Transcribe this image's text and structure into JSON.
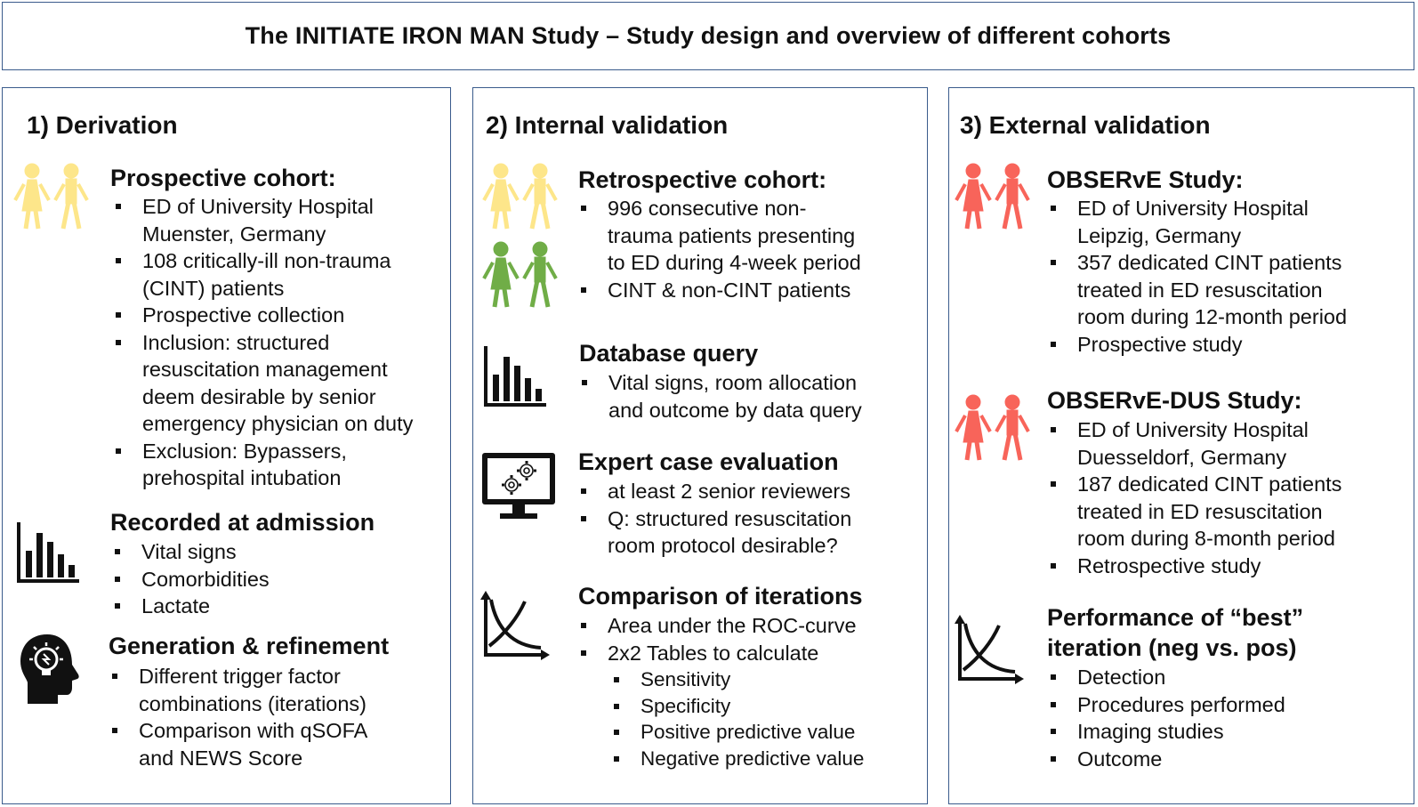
{
  "title": "The INITIATE IRON MAN Study – Study design and overview of different cohorts",
  "colors": {
    "border": "#3a5b8c",
    "yellow": "#fde68a",
    "green": "#70ad47",
    "red": "#f8645a",
    "black": "#111111"
  },
  "derivation": {
    "heading": "1) Derivation",
    "prospective": {
      "heading": "Prospective cohort:",
      "items": [
        [
          "ED of University  Hospital",
          "Muenster, Germany"
        ],
        [
          "108 critically-ill non-trauma",
          "(CINT) patients"
        ],
        [
          "Prospective collection"
        ],
        [
          "Inclusion:  structured",
          "resuscitation management",
          "deem desirable by senior",
          "emergency physician on duty"
        ],
        [
          "Exclusion:  Bypassers,",
          "prehospital intubation"
        ]
      ]
    },
    "recorded": {
      "heading": "Recorded at admission",
      "items": [
        [
          "Vital signs"
        ],
        [
          "Comorbidities"
        ],
        [
          "Lactate"
        ]
      ]
    },
    "generation": {
      "heading": "Generation & refinement",
      "items": [
        [
          "Different trigger factor",
          "combinations  (iterations)"
        ],
        [
          "Comparison with qSOFA",
          "and NEWS Score"
        ]
      ]
    }
  },
  "internal": {
    "heading": "2) Internal validation",
    "retrospective": {
      "heading": "Retrospective cohort:",
      "items": [
        [
          "996 consecutive  non-",
          "trauma patients presenting",
          "to ED during  4-week period"
        ],
        [
          "CINT & non-CINT  patients"
        ]
      ]
    },
    "database": {
      "heading": "Database query",
      "items": [
        [
          "Vital signs, room allocation",
          "and outcome by data query"
        ]
      ]
    },
    "expert": {
      "heading": "Expert case evaluation",
      "items": [
        [
          "at least 2 senior reviewers"
        ],
        [
          "Q: structured resuscitation",
          "room protocol desirable?"
        ]
      ]
    },
    "comparison": {
      "heading": "Comparison of iterations",
      "items": [
        [
          "Area under  the ROC-curve"
        ],
        [
          "2x2 Tables to calculate"
        ]
      ],
      "sub_items": [
        [
          "Sensitivity"
        ],
        [
          "Specificity"
        ],
        [
          "Positive predictive value"
        ],
        [
          "Negative predictive value"
        ]
      ]
    }
  },
  "external": {
    "heading": "3) External validation",
    "observe": {
      "heading": "OBSERvE Study:",
      "items": [
        [
          "ED of University  Hospital",
          "Leipzig,  Germany"
        ],
        [
          "357 dedicated CINT patients",
          "treated in ED resuscitation",
          "room during  12-month  period"
        ],
        [
          "Prospective study"
        ]
      ]
    },
    "observe_dus": {
      "heading": "OBSERvE-DUS Study:",
      "items": [
        [
          "ED of University  Hospital",
          "Duesseldorf, Germany"
        ],
        [
          "187 dedicated CINT patients",
          "treated in ED resuscitation",
          "room during  8-month  period"
        ],
        [
          "Retrospective study"
        ]
      ]
    },
    "performance": {
      "heading_lines": [
        "Performance of “best”",
        "iteration (neg vs. pos)"
      ],
      "items": [
        [
          "Detection"
        ],
        [
          "Procedures performed"
        ],
        [
          "Imaging studies"
        ],
        [
          "Outcome"
        ]
      ]
    }
  }
}
